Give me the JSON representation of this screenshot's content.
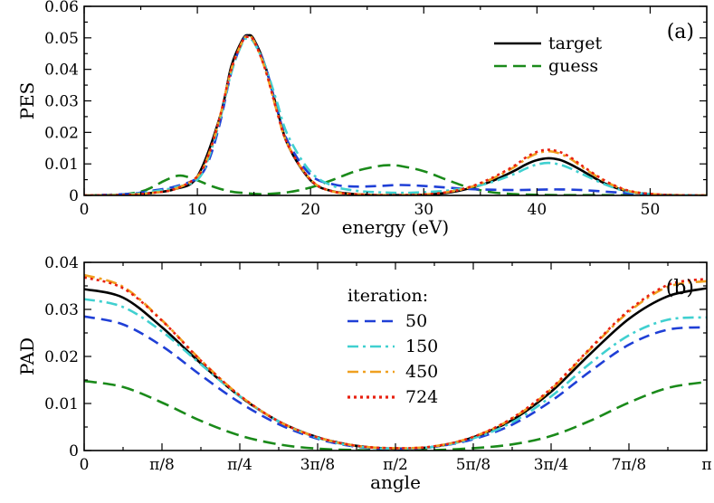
{
  "chart_data": [
    {
      "type": "line",
      "panel_label": "(a)",
      "xlabel": "energy (eV)",
      "ylabel": "PES",
      "xlim": [
        0,
        55
      ],
      "ylim": [
        0,
        0.06
      ],
      "xticks": [
        0,
        10,
        20,
        30,
        40,
        50
      ],
      "xtick_labels": [
        "0",
        "10",
        "20",
        "30",
        "40",
        "50"
      ],
      "yticks": [
        0,
        0.01,
        0.02,
        0.03,
        0.04,
        0.05,
        0.06
      ],
      "ytick_labels": [
        "0",
        "0.01",
        "0.02",
        "0.03",
        "0.04",
        "0.05",
        "0.06"
      ],
      "legend": {
        "position": "top-right",
        "entries": [
          "target",
          "guess"
        ]
      },
      "series": [
        {
          "name": "target",
          "color": "#000000",
          "dash": "solid",
          "x": [
            0,
            4,
            6,
            8,
            10,
            12,
            13,
            14,
            14.5,
            15,
            16,
            17,
            18,
            20,
            22,
            25,
            28,
            30,
            32,
            34,
            36,
            38,
            39,
            40,
            41,
            42,
            43,
            44,
            46,
            48,
            50,
            52,
            55
          ],
          "y": [
            0,
            0.0002,
            0.0008,
            0.002,
            0.006,
            0.025,
            0.041,
            0.0495,
            0.0508,
            0.0495,
            0.041,
            0.028,
            0.016,
            0.0048,
            0.0013,
            0.0002,
            0.0001,
            0.0002,
            0.0008,
            0.0022,
            0.0045,
            0.0078,
            0.0098,
            0.0112,
            0.0118,
            0.0113,
            0.0098,
            0.0078,
            0.0038,
            0.0013,
            0.0004,
            0.0001,
            0
          ]
        },
        {
          "name": "guess",
          "color": "#1a8a1a",
          "dash": "long-dash",
          "x": [
            0,
            3,
            5,
            6,
            7,
            8,
            8.5,
            9,
            10,
            11,
            12,
            13,
            14,
            15,
            16,
            18,
            20,
            22,
            24,
            26,
            27,
            28,
            30,
            32,
            34,
            36,
            38,
            40,
            42,
            45,
            50,
            55
          ],
          "y": [
            0,
            0.0002,
            0.0012,
            0.0026,
            0.0045,
            0.006,
            0.0063,
            0.006,
            0.0048,
            0.0033,
            0.0021,
            0.0012,
            0.0008,
            0.0005,
            0.0004,
            0.001,
            0.0025,
            0.005,
            0.0077,
            0.0093,
            0.0096,
            0.0093,
            0.0077,
            0.005,
            0.0025,
            0.001,
            0.0004,
            0.0002,
            0.0001,
            0.0001,
            0,
            0
          ]
        },
        {
          "name": "iteration 50",
          "color": "#1f3fd6",
          "dash": "dash",
          "x": [
            0,
            4,
            6,
            8,
            10,
            11,
            12,
            13,
            14,
            14.5,
            15,
            16,
            17,
            18,
            20,
            22,
            24,
            26,
            28,
            30,
            32,
            34,
            36,
            38,
            40,
            42,
            44,
            46,
            48,
            50,
            52,
            55
          ],
          "y": [
            0,
            0.0005,
            0.0015,
            0.0028,
            0.0055,
            0.011,
            0.023,
            0.039,
            0.049,
            0.0505,
            0.049,
            0.041,
            0.028,
            0.017,
            0.0065,
            0.0035,
            0.0028,
            0.003,
            0.0033,
            0.003,
            0.0025,
            0.002,
            0.0018,
            0.0017,
            0.0018,
            0.0019,
            0.0017,
            0.0012,
            0.0007,
            0.0003,
            0.0001,
            0
          ]
        },
        {
          "name": "iteration 150",
          "color": "#40d0d0",
          "dash": "dash-dot",
          "x": [
            0,
            4,
            6,
            8,
            10,
            11,
            12,
            13,
            14,
            14.5,
            15,
            16,
            17,
            18,
            20,
            22,
            24,
            26,
            28,
            30,
            32,
            34,
            36,
            38,
            39,
            40,
            41,
            42,
            43,
            44,
            46,
            48,
            50,
            52,
            55
          ],
          "y": [
            0,
            0.0004,
            0.0012,
            0.0025,
            0.005,
            0.012,
            0.024,
            0.039,
            0.0485,
            0.0497,
            0.0485,
            0.041,
            0.03,
            0.019,
            0.0075,
            0.003,
            0.0015,
            0.001,
            0.0008,
            0.001,
            0.0015,
            0.0025,
            0.0042,
            0.0068,
            0.0085,
            0.0098,
            0.0103,
            0.0098,
            0.0085,
            0.0068,
            0.0035,
            0.0012,
            0.0004,
            0.0001,
            0
          ]
        },
        {
          "name": "iteration 450",
          "color": "#f0a020",
          "dash": "dash-dot",
          "x": [
            0,
            4,
            6,
            8,
            10,
            11,
            12,
            13,
            14,
            14.5,
            15,
            16,
            17,
            18,
            20,
            22,
            25,
            28,
            30,
            32,
            34,
            36,
            38,
            39,
            40,
            41,
            42,
            43,
            44,
            46,
            48,
            50,
            52,
            55
          ],
          "y": [
            0,
            0.0002,
            0.0008,
            0.002,
            0.006,
            0.013,
            0.025,
            0.04,
            0.049,
            0.0505,
            0.049,
            0.04,
            0.027,
            0.016,
            0.005,
            0.0012,
            0.0002,
            0.0001,
            0.0003,
            0.001,
            0.0025,
            0.0052,
            0.009,
            0.0115,
            0.0133,
            0.014,
            0.0133,
            0.0115,
            0.009,
            0.0045,
            0.0015,
            0.0005,
            0.0001,
            0
          ]
        },
        {
          "name": "iteration 724",
          "color": "#e82010",
          "dash": "dot",
          "x": [
            0,
            4,
            6,
            8,
            10,
            11,
            12,
            13,
            14,
            14.5,
            15,
            16,
            17,
            18,
            20,
            22,
            25,
            28,
            30,
            32,
            34,
            36,
            38,
            39,
            40,
            41,
            42,
            43,
            44,
            46,
            48,
            50,
            52,
            55
          ],
          "y": [
            0,
            0.0002,
            0.0008,
            0.002,
            0.006,
            0.013,
            0.025,
            0.04,
            0.049,
            0.0503,
            0.049,
            0.04,
            0.027,
            0.016,
            0.005,
            0.0012,
            0.0002,
            0.0001,
            0.0003,
            0.001,
            0.0026,
            0.0055,
            0.0094,
            0.012,
            0.0138,
            0.0145,
            0.0138,
            0.012,
            0.0094,
            0.0047,
            0.0016,
            0.0005,
            0.0001,
            0
          ]
        }
      ]
    },
    {
      "type": "line",
      "panel_label": "(b)",
      "xlabel": "angle",
      "ylabel": "PAD",
      "xlim": [
        0,
        1
      ],
      "x_units": "fraction of π",
      "ylim": [
        0,
        0.04
      ],
      "xticks": [
        0,
        0.125,
        0.25,
        0.375,
        0.5,
        0.625,
        0.75,
        0.875,
        1
      ],
      "xtick_labels": [
        "0",
        "π/8",
        "π/4",
        "3π/8",
        "π/2",
        "5π/8",
        "3π/4",
        "7π/8",
        "π"
      ],
      "yticks": [
        0,
        0.01,
        0.02,
        0.03,
        0.04
      ],
      "ytick_labels": [
        "0",
        "0.01",
        "0.02",
        "0.03",
        "0.04"
      ],
      "legend": {
        "position": "top-center",
        "title": "iteration:",
        "entries": [
          "50",
          "150",
          "450",
          "724"
        ]
      },
      "series": [
        {
          "name": "target",
          "color": "#000000",
          "dash": "solid",
          "x": [
            0,
            0.0625,
            0.125,
            0.1875,
            0.25,
            0.3125,
            0.375,
            0.4375,
            0.5,
            0.5625,
            0.625,
            0.6875,
            0.75,
            0.8125,
            0.875,
            0.9375,
            1
          ],
          "y": [
            0.0343,
            0.0325,
            0.0262,
            0.0185,
            0.0115,
            0.0062,
            0.0028,
            0.001,
            0.0004,
            0.0008,
            0.0028,
            0.0065,
            0.0125,
            0.0205,
            0.028,
            0.0328,
            0.0345
          ]
        },
        {
          "name": "guess",
          "color": "#1a8a1a",
          "dash": "long-dash",
          "x": [
            0,
            0.0625,
            0.125,
            0.1875,
            0.25,
            0.3125,
            0.375,
            0.4375,
            0.5,
            0.5625,
            0.625,
            0.6875,
            0.75,
            0.8125,
            0.875,
            0.9375,
            1
          ],
          "y": [
            0.0148,
            0.0135,
            0.0102,
            0.0063,
            0.0032,
            0.0013,
            0.0004,
            0.0001,
            0,
            0.0001,
            0.0005,
            0.0013,
            0.0031,
            0.0063,
            0.0102,
            0.0133,
            0.0146
          ]
        },
        {
          "name": "50",
          "color": "#1f3fd6",
          "dash": "dash",
          "x": [
            0,
            0.0625,
            0.125,
            0.1875,
            0.25,
            0.3125,
            0.375,
            0.4375,
            0.5,
            0.5625,
            0.625,
            0.6875,
            0.75,
            0.8125,
            0.875,
            0.9375,
            1
          ],
          "y": [
            0.0285,
            0.0268,
            0.0222,
            0.016,
            0.0102,
            0.0056,
            0.0025,
            0.0008,
            0.0003,
            0.0008,
            0.0024,
            0.0055,
            0.0105,
            0.0168,
            0.0225,
            0.0257,
            0.0262
          ]
        },
        {
          "name": "150",
          "color": "#40d0d0",
          "dash": "dash-dot",
          "x": [
            0,
            0.0625,
            0.125,
            0.1875,
            0.25,
            0.3125,
            0.375,
            0.4375,
            0.5,
            0.5625,
            0.625,
            0.6875,
            0.75,
            0.8125,
            0.875,
            0.9375,
            1
          ],
          "y": [
            0.0322,
            0.0305,
            0.0253,
            0.0183,
            0.0115,
            0.0062,
            0.0027,
            0.0009,
            0.0004,
            0.0008,
            0.0026,
            0.006,
            0.0115,
            0.0185,
            0.0245,
            0.0278,
            0.0283
          ]
        },
        {
          "name": "450",
          "color": "#f0a020",
          "dash": "dash-dot",
          "x": [
            0,
            0.0625,
            0.125,
            0.1875,
            0.25,
            0.3125,
            0.375,
            0.4375,
            0.5,
            0.5625,
            0.625,
            0.6875,
            0.75,
            0.8125,
            0.875,
            0.9375,
            1
          ],
          "y": [
            0.0373,
            0.0348,
            0.0277,
            0.0192,
            0.0117,
            0.0062,
            0.0028,
            0.001,
            0.0005,
            0.0009,
            0.0029,
            0.0068,
            0.013,
            0.0215,
            0.0295,
            0.0348,
            0.036
          ]
        },
        {
          "name": "724",
          "color": "#e82010",
          "dash": "dot",
          "x": [
            0,
            0.0625,
            0.125,
            0.1875,
            0.25,
            0.3125,
            0.375,
            0.4375,
            0.5,
            0.5625,
            0.625,
            0.6875,
            0.75,
            0.8125,
            0.875,
            0.9375,
            1
          ],
          "y": [
            0.0368,
            0.0345,
            0.0276,
            0.0191,
            0.0117,
            0.0062,
            0.0028,
            0.001,
            0.0005,
            0.0009,
            0.0029,
            0.0069,
            0.0132,
            0.0217,
            0.0298,
            0.0352,
            0.0365
          ]
        }
      ]
    }
  ]
}
